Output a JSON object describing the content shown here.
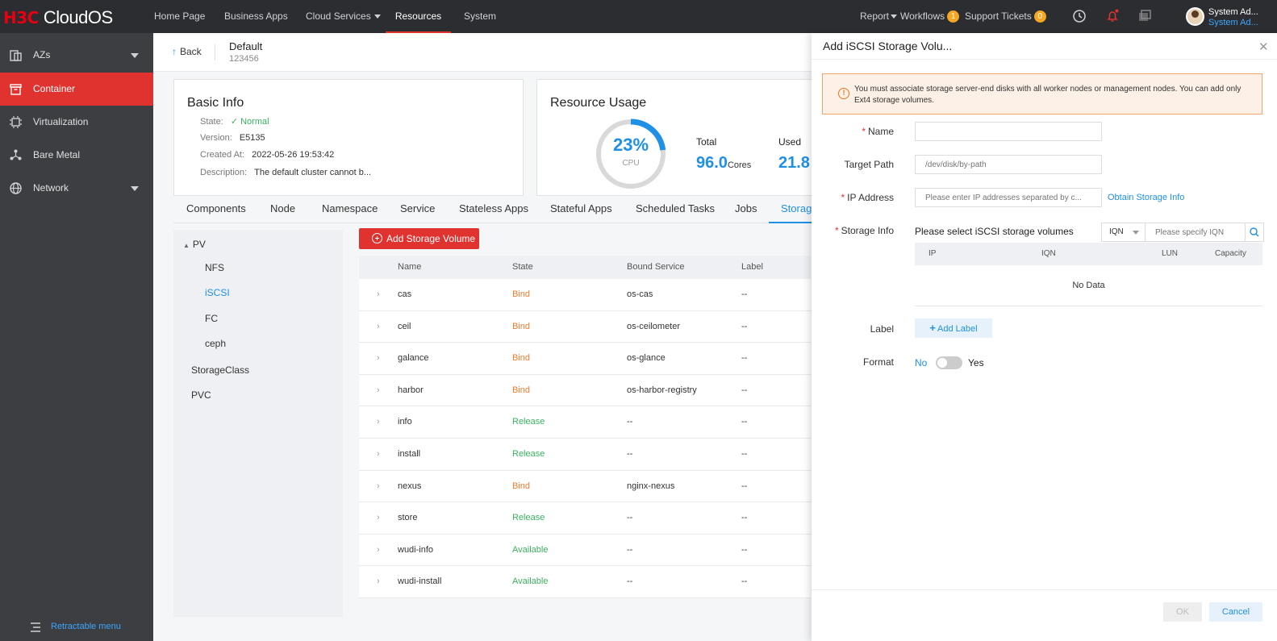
{
  "brand": {
    "h3c": "H3C",
    "cloudos": "CloudOS"
  },
  "topnav": {
    "items": [
      "Home Page",
      "Business Apps",
      "Cloud Services",
      "Resources",
      "System"
    ],
    "active": "Resources",
    "report": "Report",
    "workflows": "Workflows",
    "workflows_count": "1",
    "tickets": "Support Tickets",
    "tickets_count": "0",
    "user_name": "System Ad...",
    "user_role": "System Ad..."
  },
  "sidebar": {
    "items": [
      {
        "label": "AZs",
        "icon": "az-icon",
        "expandable": true
      },
      {
        "label": "Container",
        "icon": "container-icon",
        "active": true
      },
      {
        "label": "Virtualization",
        "icon": "virtualization-icon"
      },
      {
        "label": "Bare Metal",
        "icon": "bare-metal-icon"
      },
      {
        "label": "Network",
        "icon": "globe-icon",
        "expandable": true
      }
    ],
    "retract": "Retractable menu",
    "active_color": "#e0322f"
  },
  "header": {
    "back": "Back",
    "title": "Default",
    "subtitle": "123456"
  },
  "basic_info": {
    "title": "Basic Info",
    "state_label": "State:",
    "state_value": "Normal",
    "version_label": "Version:",
    "version_value": "E5135",
    "created_label": "Created At:",
    "created_value": "2022-05-26 19:53:42",
    "desc_label": "Description:",
    "desc_value": "The default cluster cannot b..."
  },
  "resource_usage": {
    "title": "Resource Usage",
    "cpu_percent": "23%",
    "cpu_fraction": 0.23,
    "cpu_label": "CPU",
    "total_label": "Total",
    "total_value": "96.0",
    "total_unit": "Cores",
    "used_label": "Used",
    "used_value": "21.8"
  },
  "tabs": [
    "Components",
    "Node",
    "Namespace",
    "Service",
    "Stateless Apps",
    "Stateful Apps",
    "Scheduled Tasks",
    "Jobs",
    "Storag"
  ],
  "tree": {
    "pv": "PV",
    "children": [
      "NFS",
      "iSCSI",
      "FC",
      "ceph"
    ],
    "active": "iSCSI",
    "storageclass": "StorageClass",
    "pvc": "PVC"
  },
  "add_button": "Add Storage Volume",
  "table": {
    "headers": [
      "Name",
      "State",
      "Bound Service",
      "Label"
    ],
    "rows": [
      {
        "name": "cas",
        "state": "Bind",
        "service": "os-cas",
        "label": "--"
      },
      {
        "name": "ceil",
        "state": "Bind",
        "service": "os-ceilometer",
        "label": "--"
      },
      {
        "name": "galance",
        "state": "Bind",
        "service": "os-glance",
        "label": "--"
      },
      {
        "name": "harbor",
        "state": "Bind",
        "service": "os-harbor-registry",
        "label": "--"
      },
      {
        "name": "info",
        "state": "Release",
        "service": "--",
        "label": "--"
      },
      {
        "name": "install",
        "state": "Release",
        "service": "--",
        "label": "--"
      },
      {
        "name": "nexus",
        "state": "Bind",
        "service": "nginx-nexus",
        "label": "--"
      },
      {
        "name": "store",
        "state": "Release",
        "service": "--",
        "label": "--"
      },
      {
        "name": "wudi-info",
        "state": "Available",
        "service": "--",
        "label": "--"
      },
      {
        "name": "wudi-install",
        "state": "Available",
        "service": "--",
        "label": "--"
      }
    ],
    "state_colors": {
      "Bind": "#f07b2c",
      "Release": "#3bb15f",
      "Available": "#3bb15f"
    }
  },
  "drawer": {
    "title": "Add iSCSI Storage Volu...",
    "warning": "You must associate storage server-end disks with all worker nodes or management nodes. You can add only Ext4 storage volumes.",
    "name_label": "Name",
    "target_path_label": "Target Path",
    "target_path_placeholder": "/dev/disk/by-path",
    "ip_label": "IP Address",
    "ip_placeholder": "Please enter IP addresses separated by c...",
    "obtain_link": "Obtain Storage Info",
    "storage_info_label": "Storage Info",
    "storage_info_text": "Please select iSCSI storage volumes",
    "iqn_select": "IQN",
    "iqn_placeholder": "Please specify IQN",
    "storage_headers": [
      "IP",
      "IQN",
      "LUN",
      "Capacity"
    ],
    "no_data": "No Data",
    "label_label": "Label",
    "add_label": "Add Label",
    "format_label": "Format",
    "format_no": "No",
    "format_yes": "Yes",
    "ok": "OK",
    "cancel": "Cancel"
  }
}
